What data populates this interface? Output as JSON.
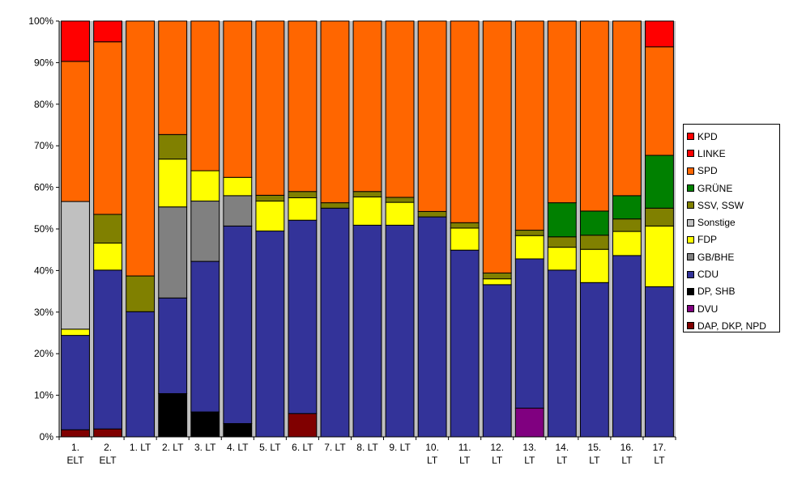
{
  "chart_data": {
    "type": "bar",
    "stacked": true,
    "percent": true,
    "categories": [
      [
        "1.",
        "ELT"
      ],
      [
        "2.",
        "ELT"
      ],
      [
        "1. LT"
      ],
      [
        "2. LT"
      ],
      [
        "3. LT"
      ],
      [
        "4. LT"
      ],
      [
        "5. LT"
      ],
      [
        "6. LT"
      ],
      [
        "7. LT"
      ],
      [
        "8. LT"
      ],
      [
        "9. LT"
      ],
      [
        "10.",
        "LT"
      ],
      [
        "11.",
        "LT"
      ],
      [
        "12.",
        "LT"
      ],
      [
        "13.",
        "LT"
      ],
      [
        "14.",
        "LT"
      ],
      [
        "15.",
        "LT"
      ],
      [
        "16.",
        "LT"
      ],
      [
        "17.",
        "LT"
      ]
    ],
    "y_ticks": [
      "0%",
      "10%",
      "20%",
      "30%",
      "40%",
      "50%",
      "60%",
      "70%",
      "80%",
      "90%",
      "100%"
    ],
    "ylim": [
      0,
      100
    ],
    "grid": false,
    "legend_position": "right",
    "series": [
      {
        "name": "DAP, DKP, NPD",
        "color": "#800000",
        "values": [
          1.7,
          1.9,
          0,
          0,
          0,
          0,
          0,
          5.6,
          0,
          0,
          0,
          0,
          0,
          0,
          0,
          0,
          0,
          0,
          0
        ]
      },
      {
        "name": "DVU",
        "color": "#800080",
        "values": [
          0,
          0,
          0,
          0,
          0,
          0,
          0,
          0,
          0,
          0,
          0,
          0,
          0,
          0,
          6.9,
          0,
          0,
          0,
          0
        ]
      },
      {
        "name": "DP, SHB",
        "color": "#000000",
        "values": [
          0,
          0,
          0,
          10.4,
          6.0,
          3.2,
          0,
          0,
          0,
          0,
          0,
          0,
          0,
          0,
          0,
          0,
          0,
          0,
          0
        ]
      },
      {
        "name": "CDU",
        "color": "#333399",
        "values": [
          22.7,
          38.2,
          30.1,
          23.0,
          36.2,
          47.5,
          49.5,
          46.5,
          55.0,
          50.9,
          50.9,
          52.9,
          44.9,
          36.6,
          35.9,
          40.1,
          37.1,
          43.6,
          36.1
        ]
      },
      {
        "name": "GB/BHE",
        "color": "#808080",
        "values": [
          0,
          0,
          0,
          21.9,
          14.5,
          7.3,
          0,
          0,
          0,
          0,
          0,
          0,
          0,
          0,
          0,
          0,
          0,
          0,
          0
        ]
      },
      {
        "name": "FDP",
        "color": "#ffff00",
        "values": [
          1.5,
          6.5,
          0,
          11.5,
          7.3,
          4.4,
          7.2,
          5.4,
          0,
          6.8,
          5.5,
          0,
          5.3,
          1.4,
          5.6,
          5.5,
          8.0,
          5.8,
          14.6
        ]
      },
      {
        "name": "Sonstige",
        "color": "#c0c0c0",
        "values": [
          30.7,
          0,
          0,
          0,
          0,
          0,
          0,
          0,
          0,
          0,
          0,
          0,
          0,
          0,
          0,
          0,
          0,
          0,
          0
        ]
      },
      {
        "name": "SSV, SSW",
        "color": "#808000",
        "values": [
          0,
          6.9,
          8.6,
          5.9,
          0,
          0,
          1.4,
          1.5,
          1.3,
          1.3,
          1.2,
          1.3,
          1.3,
          1.4,
          1.3,
          2.5,
          3.4,
          3.0,
          4.3
        ]
      },
      {
        "name": "GRÜNE",
        "color": "#008000",
        "values": [
          0,
          0,
          0,
          0,
          0,
          0,
          0,
          0,
          0,
          0,
          0,
          0,
          0,
          0,
          0,
          8.2,
          5.8,
          5.6,
          12.7
        ]
      },
      {
        "name": "SPD",
        "color": "#ff6600",
        "values": [
          33.7,
          41.5,
          61.3,
          27.3,
          36.0,
          37.6,
          41.9,
          41.0,
          43.7,
          41.0,
          42.4,
          45.8,
          48.5,
          60.6,
          50.3,
          43.7,
          45.7,
          42.0,
          26.1
        ]
      },
      {
        "name": "LINKE",
        "color": "#ff0000",
        "values": [
          0,
          0,
          0,
          0,
          0,
          0,
          0,
          0,
          0,
          0,
          0,
          0,
          0,
          0,
          0,
          0,
          0,
          0,
          6.2
        ]
      },
      {
        "name": "KPD",
        "color": "#ff0000",
        "values": [
          9.7,
          5.0,
          0,
          0,
          0,
          0,
          0,
          0,
          0,
          0,
          0,
          0,
          0,
          0,
          0,
          0,
          0,
          0,
          0
        ]
      }
    ]
  },
  "legend": {
    "items": [
      {
        "label": "KPD",
        "color": "#ff0000"
      },
      {
        "label": "LINKE",
        "color": "#ff0000"
      },
      {
        "label": "SPD",
        "color": "#ff6600"
      },
      {
        "label": "GRÜNE",
        "color": "#008000"
      },
      {
        "label": "SSV, SSW",
        "color": "#808000"
      },
      {
        "label": "Sonstige",
        "color": "#c0c0c0"
      },
      {
        "label": "FDP",
        "color": "#ffff00"
      },
      {
        "label": "GB/BHE",
        "color": "#808080"
      },
      {
        "label": "CDU",
        "color": "#333399"
      },
      {
        "label": "DP, SHB",
        "color": "#000000"
      },
      {
        "label": "DVU",
        "color": "#800080"
      },
      {
        "label": "DAP, DKP, NPD",
        "color": "#800000"
      }
    ]
  }
}
